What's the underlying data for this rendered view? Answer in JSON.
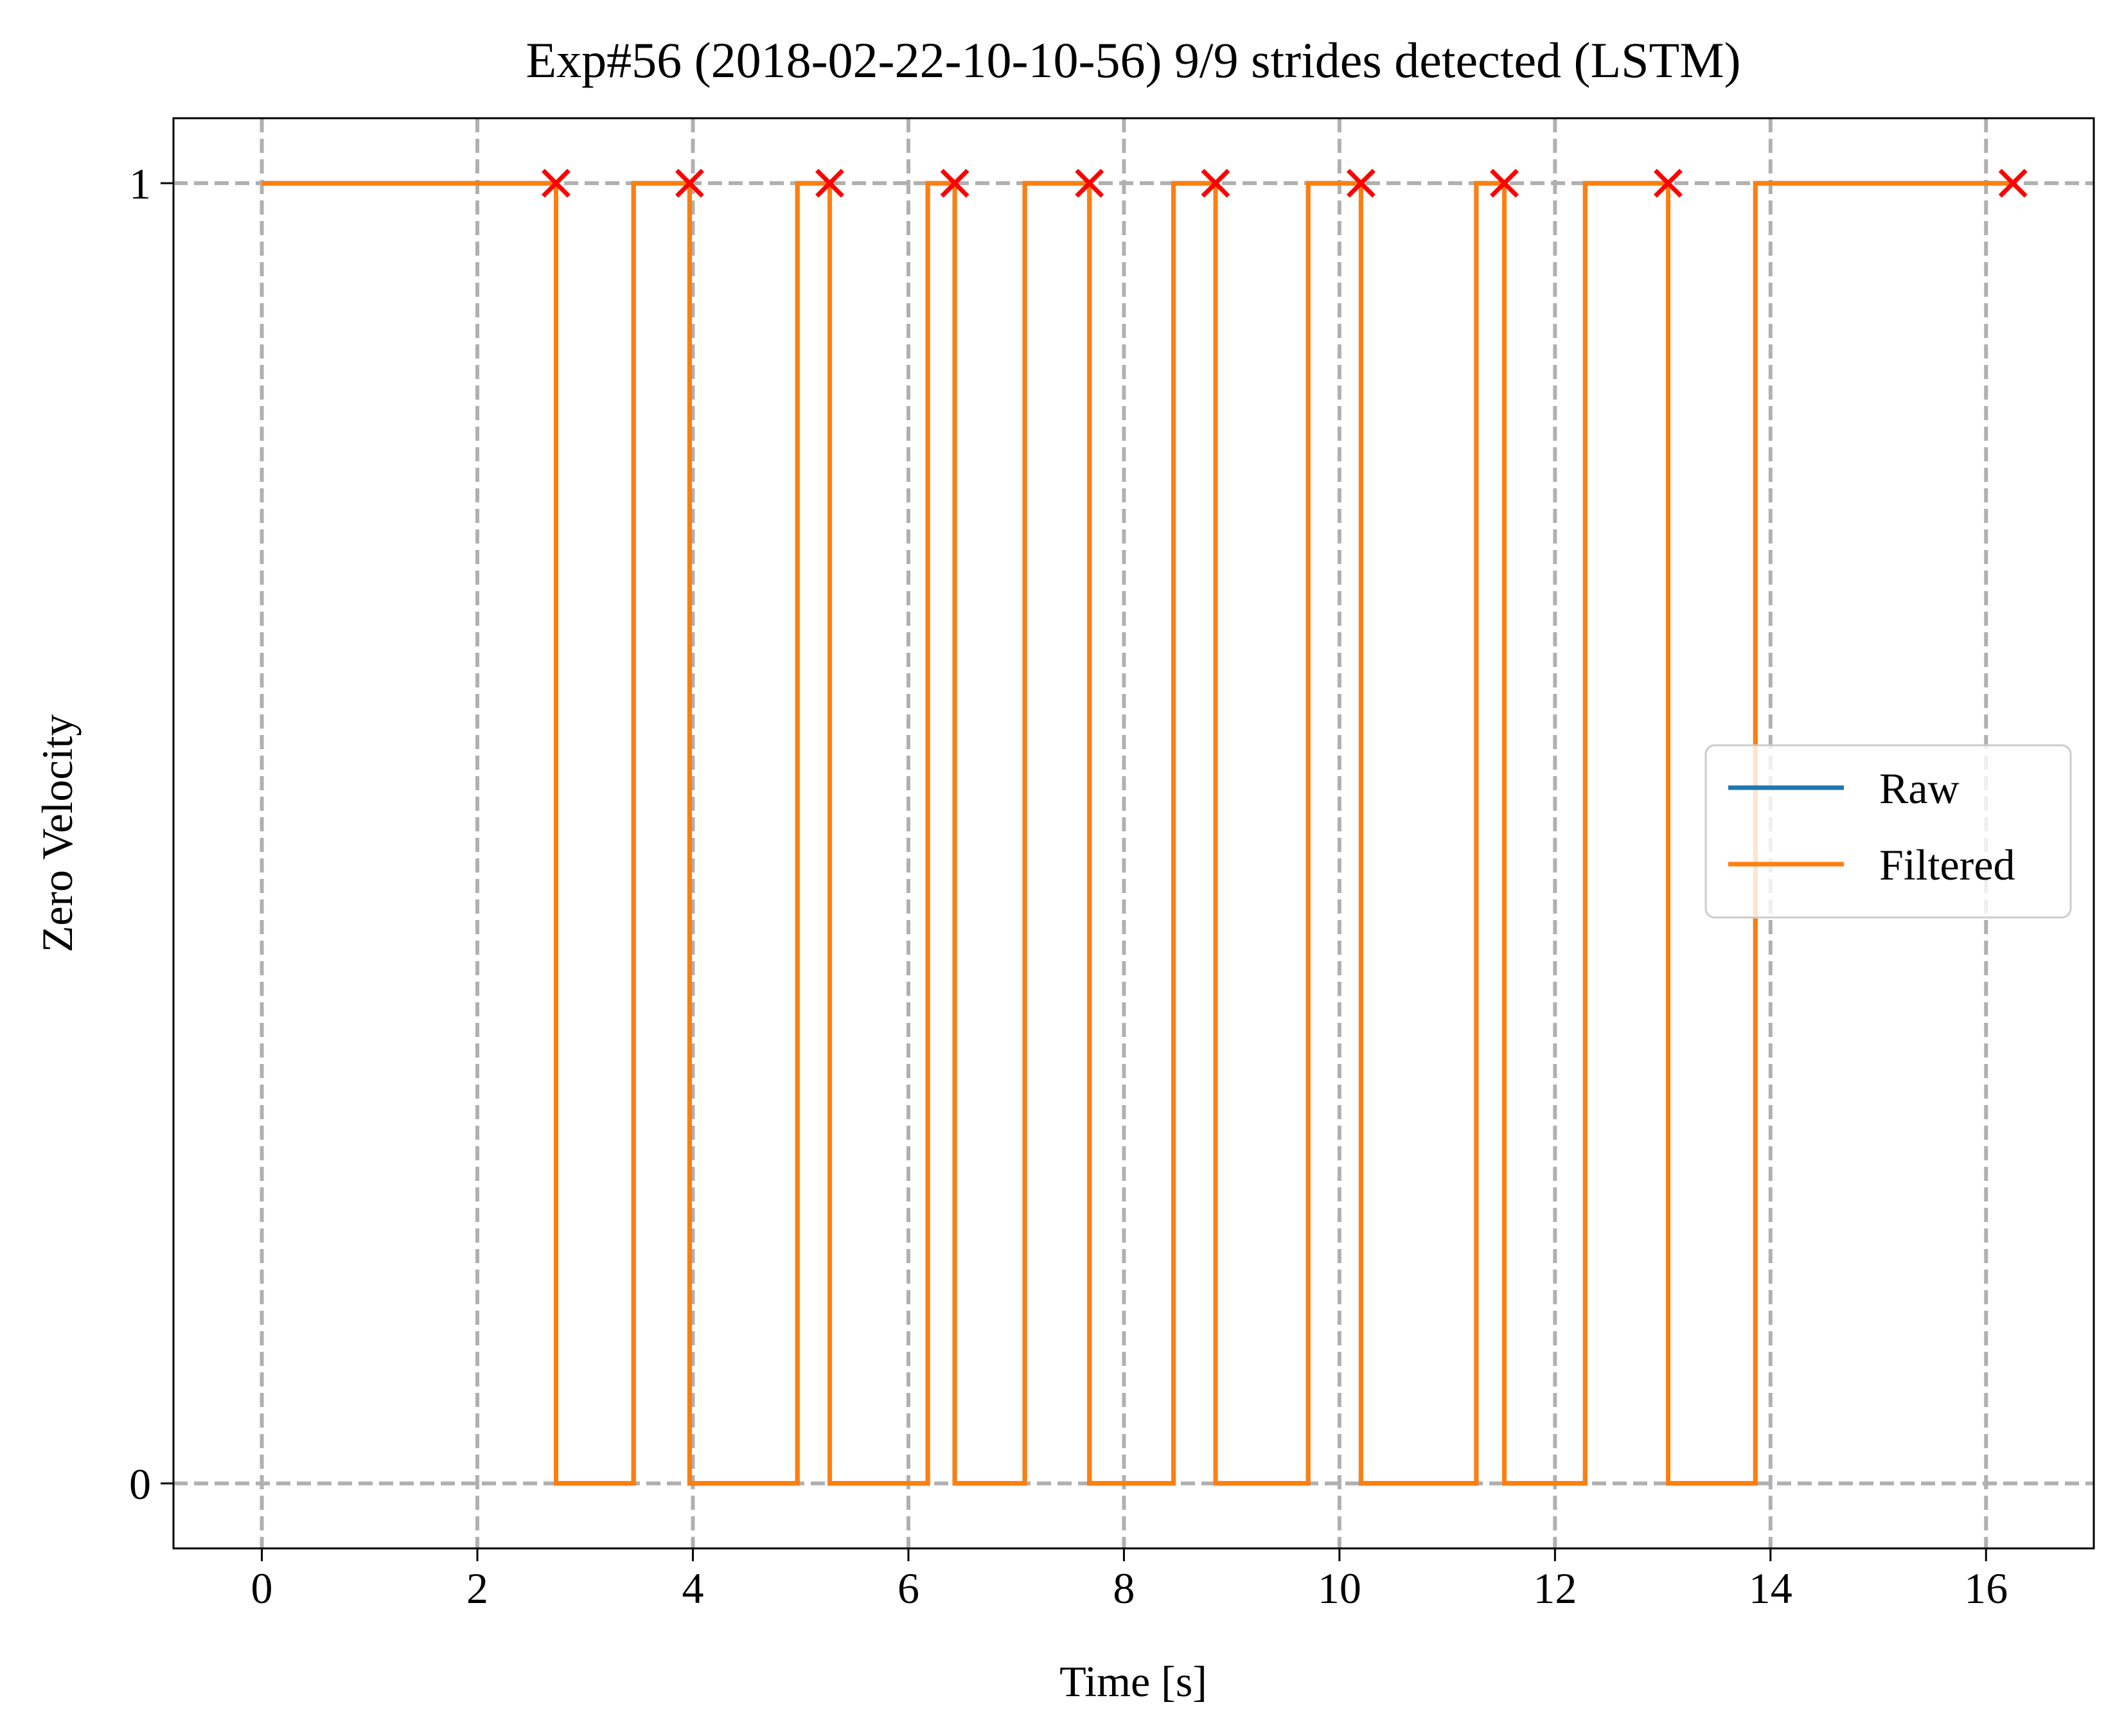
{
  "chart_data": {
    "type": "line",
    "title": "Exp#56 (2018-02-22-10-10-56) 9/9 strides detected (LSTM)",
    "xlabel": "Time [s]",
    "ylabel": "Zero Velocity",
    "xlim": [
      -0.82,
      17.0
    ],
    "ylim": [
      -0.05,
      1.05
    ],
    "xticks": [
      0,
      2,
      4,
      6,
      8,
      10,
      12,
      14,
      16
    ],
    "yticks": [
      0,
      1
    ],
    "grid": true,
    "legend_position": "center-right",
    "series": [
      {
        "name": "Raw",
        "color": "#1f77b4",
        "x": [
          0,
          2.73,
          2.73,
          3.45,
          3.45,
          3.97,
          3.97,
          4.97,
          4.97,
          5.27,
          5.27,
          6.18,
          6.18,
          6.43,
          6.43,
          7.08,
          7.08,
          7.68,
          7.68,
          8.46,
          8.46,
          8.85,
          8.85,
          9.71,
          9.71,
          10.2,
          10.2,
          11.27,
          11.27,
          11.53,
          11.53,
          12.28,
          12.28,
          13.05,
          13.05,
          13.86,
          13.86,
          16.25
        ],
        "y": [
          1,
          1,
          0,
          0,
          1,
          1,
          0,
          0,
          1,
          1,
          0,
          0,
          1,
          1,
          0,
          0,
          1,
          1,
          0,
          0,
          1,
          1,
          0,
          0,
          1,
          1,
          0,
          0,
          1,
          1,
          0,
          0,
          1,
          1,
          0,
          0,
          1,
          1
        ]
      },
      {
        "name": "Filtered",
        "color": "#ff7f0e",
        "x": [
          0,
          2.73,
          2.73,
          3.45,
          3.45,
          3.97,
          3.97,
          4.97,
          4.97,
          5.27,
          5.27,
          6.18,
          6.18,
          6.43,
          6.43,
          7.08,
          7.08,
          7.68,
          7.68,
          8.46,
          8.46,
          8.85,
          8.85,
          9.71,
          9.71,
          10.2,
          10.2,
          11.27,
          11.27,
          11.53,
          11.53,
          12.28,
          12.28,
          13.05,
          13.05,
          13.86,
          13.86,
          16.25
        ],
        "y": [
          1,
          1,
          0,
          0,
          1,
          1,
          0,
          0,
          1,
          1,
          0,
          0,
          1,
          1,
          0,
          0,
          1,
          1,
          0,
          0,
          1,
          1,
          0,
          0,
          1,
          1,
          0,
          0,
          1,
          1,
          0,
          0,
          1,
          1,
          0,
          0,
          1,
          1
        ]
      }
    ],
    "markers": {
      "color": "#ff0000",
      "symbol": "x",
      "x": [
        2.73,
        3.97,
        5.27,
        6.43,
        7.68,
        8.85,
        10.2,
        11.53,
        13.05,
        16.25
      ],
      "y": [
        1,
        1,
        1,
        1,
        1,
        1,
        1,
        1,
        1,
        1
      ]
    }
  }
}
